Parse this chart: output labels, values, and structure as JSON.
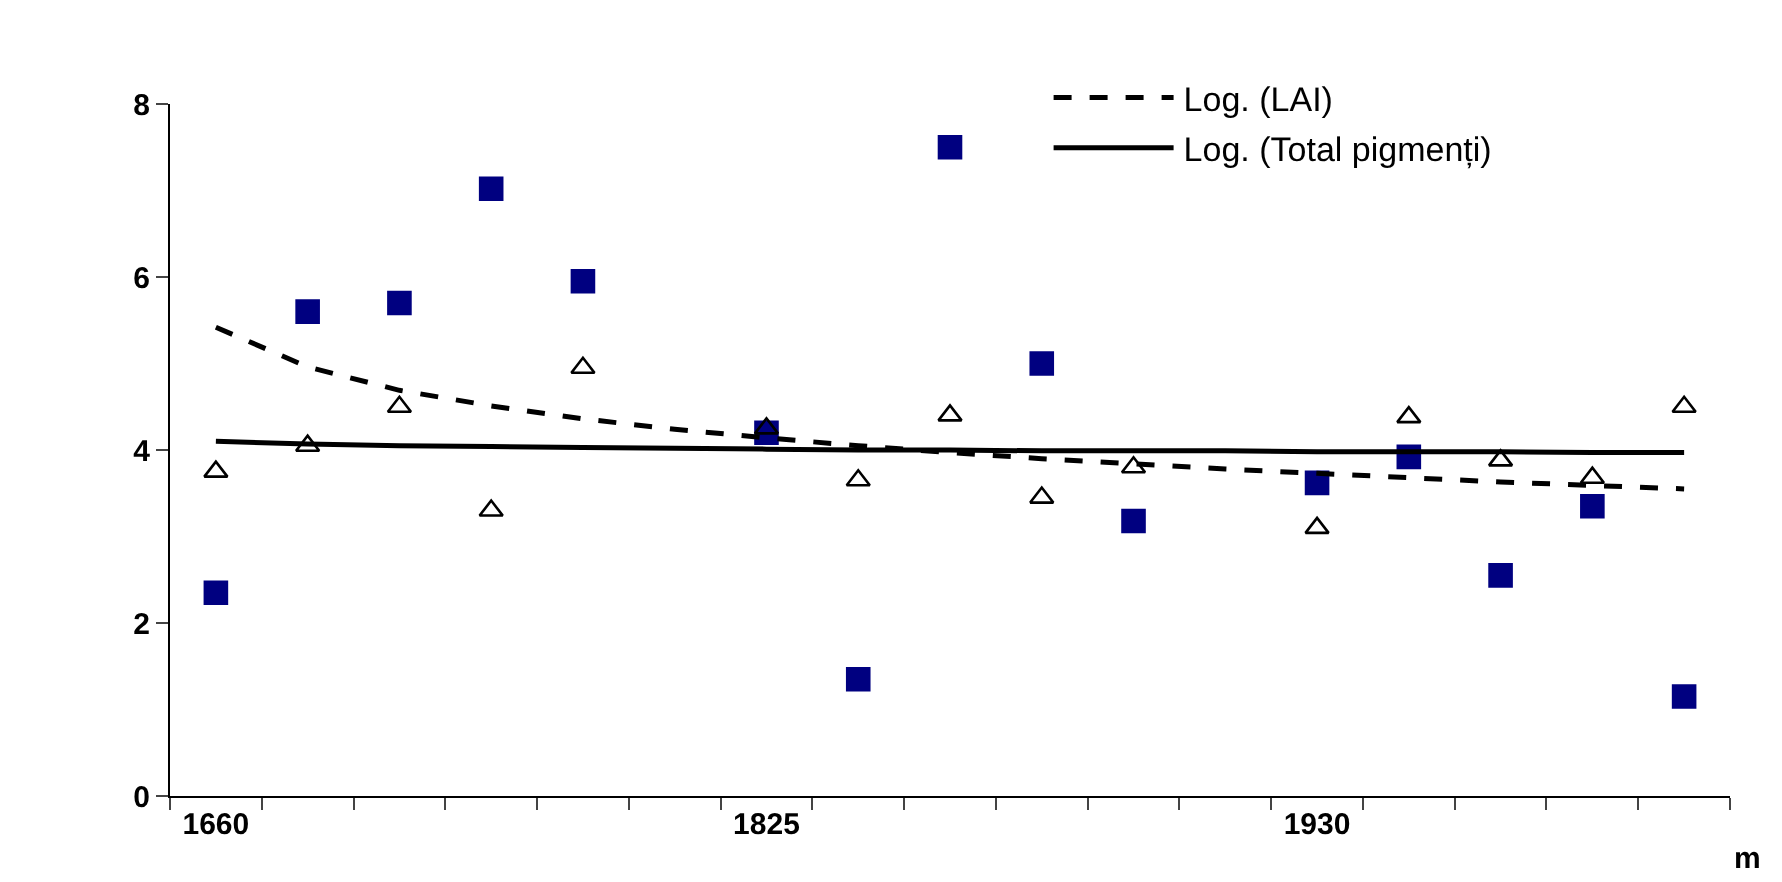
{
  "chart_data": {
    "type": "scatter",
    "xlabel": "m",
    "categories": [
      "1660",
      null,
      null,
      null,
      null,
      null,
      "1825",
      null,
      null,
      null,
      null,
      null,
      "1930",
      null,
      null,
      null,
      null
    ],
    "ylim": [
      0,
      8
    ],
    "yticks": [
      0,
      2,
      4,
      6,
      8
    ],
    "legend": "top right",
    "series": [
      {
        "marker": "square",
        "color": "#000080",
        "values": [
          2.35,
          5.6,
          5.7,
          7.02,
          5.95,
          null,
          4.2,
          1.35,
          7.5,
          5.0,
          3.18,
          null,
          3.62,
          3.92,
          2.55,
          3.35,
          1.15
        ]
      },
      {
        "marker": "triangle",
        "color": "#000000",
        "values": [
          3.75,
          4.05,
          4.5,
          3.3,
          4.95,
          null,
          4.25,
          3.65,
          4.4,
          3.45,
          3.8,
          null,
          3.1,
          4.38,
          3.88,
          3.68,
          4.5
        ]
      },
      {
        "type": "line",
        "name": "Log. (LAI)",
        "line_style": "dashed",
        "marker": "none",
        "color": "#000000",
        "values": [
          5.42,
          4.96,
          4.69,
          4.51,
          4.36,
          4.24,
          4.14,
          4.05,
          3.97,
          3.9,
          3.84,
          3.78,
          3.73,
          3.68,
          3.63,
          3.59,
          3.55
        ]
      },
      {
        "type": "line",
        "name": "Log. (Total pigmenți)",
        "line_style": "solid",
        "marker": "none",
        "color": "#000000",
        "values": [
          4.1,
          4.07,
          4.05,
          4.04,
          4.03,
          4.02,
          4.01,
          4.0,
          4.0,
          3.99,
          3.99,
          3.99,
          3.98,
          3.98,
          3.98,
          3.97,
          3.97
        ]
      }
    ]
  }
}
